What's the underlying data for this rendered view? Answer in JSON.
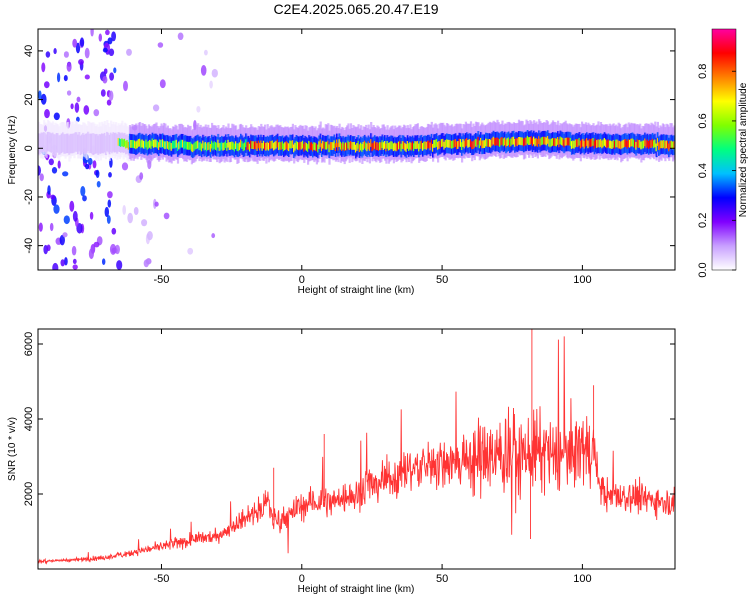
{
  "title": "C2E4.2025.065.20.47.E19",
  "chart_data": [
    {
      "type": "heatmap",
      "xlabel": "Height of straight line (km)",
      "ylabel": "Frequency (Hz)",
      "xlim": [
        -94,
        133
      ],
      "ylim": [
        -50,
        49
      ],
      "xticks": [
        -50,
        0,
        50,
        100
      ],
      "xtick_labels": [
        "-50",
        "0",
        "50",
        "100"
      ],
      "yticks": [
        -40,
        -20,
        0,
        20,
        40
      ],
      "ytick_labels": [
        "-40",
        "-20",
        "0",
        "20",
        "40"
      ],
      "colorbar": {
        "label": "Normalized spectral amplitude",
        "range": [
          0,
          0.97
        ],
        "ticks": [
          0.0,
          0.2,
          0.4,
          0.6,
          0.8
        ],
        "tick_labels": [
          "0.0",
          "0.2",
          "0.4",
          "0.6",
          "0.8"
        ],
        "colors": [
          "#ffffff",
          "#c8a0ff",
          "#8000ff",
          "#0000ff",
          "#00c0ff",
          "#00ff80",
          "#80ff00",
          "#ffff00",
          "#ff8000",
          "#ff0000",
          "#ff00a0"
        ]
      },
      "ridge": [
        {
          "x": -94,
          "y": 2
        },
        {
          "x": -70,
          "y": 2
        },
        {
          "x": -60,
          "y": 2
        },
        {
          "x": -40,
          "y": 1
        },
        {
          "x": -20,
          "y": 1
        },
        {
          "x": 0,
          "y": 1
        },
        {
          "x": 20,
          "y": 1
        },
        {
          "x": 40,
          "y": 1
        },
        {
          "x": 60,
          "y": 2
        },
        {
          "x": 80,
          "y": 3
        },
        {
          "x": 100,
          "y": 2
        },
        {
          "x": 120,
          "y": 2
        },
        {
          "x": 133,
          "y": 1
        }
      ]
    },
    {
      "type": "line",
      "xlabel": "Height of straight line (km)",
      "ylabel": "SNR (10 * v/v)",
      "xlim": [
        -94,
        133
      ],
      "ylim": [
        0,
        6400
      ],
      "xticks": [
        -50,
        0,
        50,
        100
      ],
      "xtick_labels": [
        "-50",
        "0",
        "50",
        "100"
      ],
      "yticks": [
        2000,
        4000,
        6000
      ],
      "ytick_labels": [
        "2000",
        "4000",
        "6000"
      ],
      "line_color": "#ff3333",
      "series": [
        {
          "x": [
            -94,
            -80,
            -70,
            -60,
            -50,
            -40,
            -30,
            -25,
            -20,
            -15,
            -12,
            -10,
            -5,
            0,
            5,
            10,
            15,
            20,
            25,
            30,
            40,
            50,
            60,
            70,
            80,
            90,
            95,
            100,
            104,
            106,
            110,
            120,
            133
          ],
          "values": [
            200,
            250,
            300,
            450,
            600,
            750,
            900,
            1100,
            1400,
            1600,
            1800,
            1300,
            1400,
            1700,
            1800,
            1800,
            1900,
            2000,
            2300,
            2400,
            2700,
            2800,
            2900,
            3000,
            3100,
            3000,
            3100,
            3200,
            3200,
            2200,
            1900,
            1900,
            1800
          ]
        }
      ]
    }
  ]
}
